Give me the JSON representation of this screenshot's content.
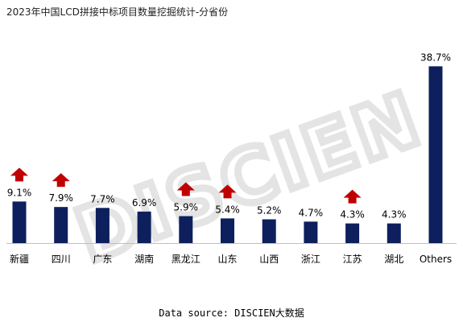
{
  "title": "2023年中国LCD拼接中标项目数量挖掘统计-分省份",
  "source": "Data source: DISCIEN大数据",
  "watermark": "DISCIEN",
  "colors": {
    "bar": "#0d1f5c",
    "arrow": "#c00000",
    "axis": "#bfbfbf",
    "watermark": "#e4e4e4",
    "text": "#000000"
  },
  "chart_data": {
    "type": "bar",
    "categories": [
      "新疆",
      "四川",
      "广东",
      "湖南",
      "黑龙江",
      "山东",
      "山西",
      "浙江",
      "江苏",
      "湖北",
      "Others"
    ],
    "values": [
      9.1,
      7.9,
      7.7,
      6.9,
      5.9,
      5.4,
      5.2,
      4.7,
      4.3,
      4.3,
      38.7
    ],
    "data_labels": [
      "9.1%",
      "7.9%",
      "7.7%",
      "6.9%",
      "5.9%",
      "5.4%",
      "5.2%",
      "4.7%",
      "4.3%",
      "4.3%",
      "38.7%"
    ],
    "increase_arrows": [
      true,
      true,
      false,
      false,
      true,
      true,
      false,
      false,
      true,
      false,
      false
    ],
    "unit": "%",
    "ylim": [
      0,
      40
    ],
    "grid": false,
    "legend": "none"
  }
}
